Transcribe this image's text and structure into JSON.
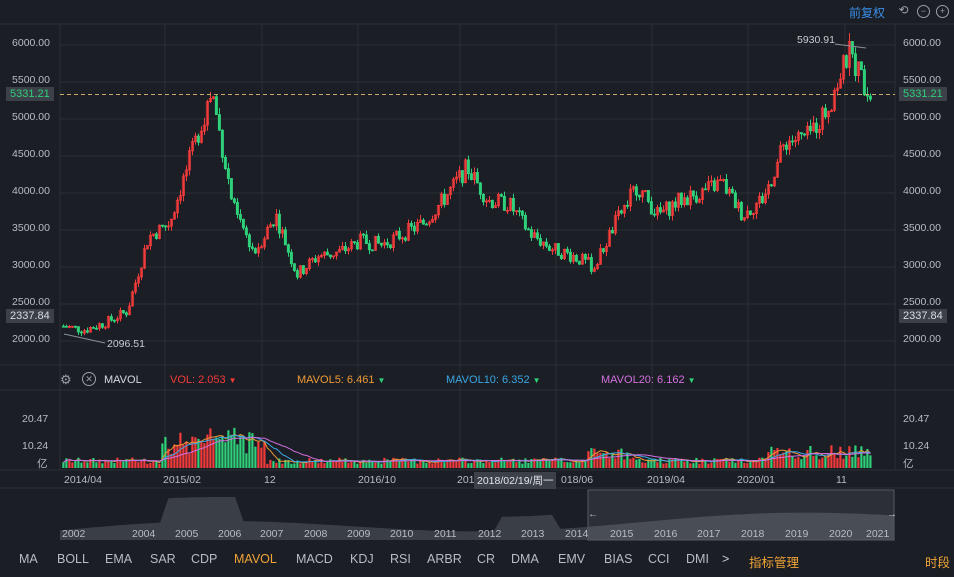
{
  "toolbar": {
    "adjust_label": "前复权"
  },
  "price_axis": {
    "ticks": [
      "6000.00",
      "5500.00",
      "5000.00",
      "4500.00",
      "4000.00",
      "3500.00",
      "3000.00",
      "2500.00",
      "2000.00"
    ]
  },
  "markers": {
    "current_price": "5331.21",
    "base_price": "2337.84",
    "high_label": "5930.91",
    "low_label": "2096.51"
  },
  "indicator": {
    "name": "MAVOL",
    "vol": "VOL: 2.053",
    "mavol5": "MAVOL5: 6.461",
    "mavol10": "MAVOL10: 6.352",
    "mavol20": "MAVOL20: 6.162",
    "colors": {
      "vol": "#f23b3b",
      "mavol5": "#f09a37",
      "mavol10": "#3ba7e6",
      "mavol20": "#d46fe0"
    }
  },
  "volume_axis": {
    "ticks": [
      "20.47",
      "10.24"
    ],
    "unit": "亿"
  },
  "x_axis": {
    "labels": [
      "2014/04",
      "2015/02",
      "12",
      "2016/10",
      "201",
      "2018/02/19/周一",
      "018/06",
      "2019/04",
      "2020/01",
      "11"
    ]
  },
  "navigator": {
    "years": [
      "2002",
      "2004",
      "2005",
      "2006",
      "2007",
      "2008",
      "2009",
      "2010",
      "2011",
      "2012",
      "2013",
      "2014",
      "2015",
      "2016",
      "2017",
      "2018",
      "2019",
      "2020",
      "2021"
    ]
  },
  "bottom_tabs": {
    "items": [
      "MA",
      "BOLL",
      "EMA",
      "SAR",
      "CDP",
      "MAVOL",
      "MACD",
      "KDJ",
      "RSI",
      "ARBR",
      "CR",
      "DMA",
      "EMV",
      "BIAS",
      "CCI",
      "DMI"
    ],
    "active": "MAVOL",
    "more": ">",
    "manage": "指标管理",
    "period": "时段"
  },
  "chart_data": {
    "type": "candlestick",
    "title": "",
    "y_range": [
      1800,
      6150
    ],
    "price_series": [
      [
        "2014/01",
        2200
      ],
      [
        "2014/04",
        2150
      ],
      [
        "2014/07",
        2250
      ],
      [
        "2014/10",
        2400
      ],
      [
        "2014/12",
        3400
      ],
      [
        "2015/02",
        3600
      ],
      [
        "2015/04",
        4500
      ],
      [
        "2015/06",
        5380
      ],
      [
        "2015/07",
        3800
      ],
      [
        "2015/09",
        3200
      ],
      [
        "2015/11",
        3700
      ],
      [
        "2016/01",
        2900
      ],
      [
        "2016/04",
        3150
      ],
      [
        "2016/07",
        3200
      ],
      [
        "2016/10",
        3350
      ],
      [
        "2017/01",
        3300
      ],
      [
        "2017/04",
        3450
      ],
      [
        "2017/07",
        3600
      ],
      [
        "2017/10",
        3950
      ],
      [
        "2018/01",
        4350
      ],
      [
        "2018/02",
        3900
      ],
      [
        "2018/04",
        3850
      ],
      [
        "2018/06",
        3450
      ],
      [
        "2018/08",
        3250
      ],
      [
        "2018/10",
        3150
      ],
      [
        "2018/12",
        3000
      ],
      [
        "2019/02",
        3600
      ],
      [
        "2019/04",
        4100
      ],
      [
        "2019/06",
        3700
      ],
      [
        "2019/09",
        3900
      ],
      [
        "2019/12",
        4000
      ],
      [
        "2020/01",
        4150
      ],
      [
        "2020/03",
        3700
      ],
      [
        "2020/05",
        3950
      ],
      [
        "2020/07",
        4700
      ],
      [
        "2020/10",
        4750
      ],
      [
        "2020/12",
        5150
      ],
      [
        "2021/02",
        5900
      ],
      [
        "2021/03",
        5331
      ]
    ],
    "volume_range": [
      0,
      22
    ]
  }
}
